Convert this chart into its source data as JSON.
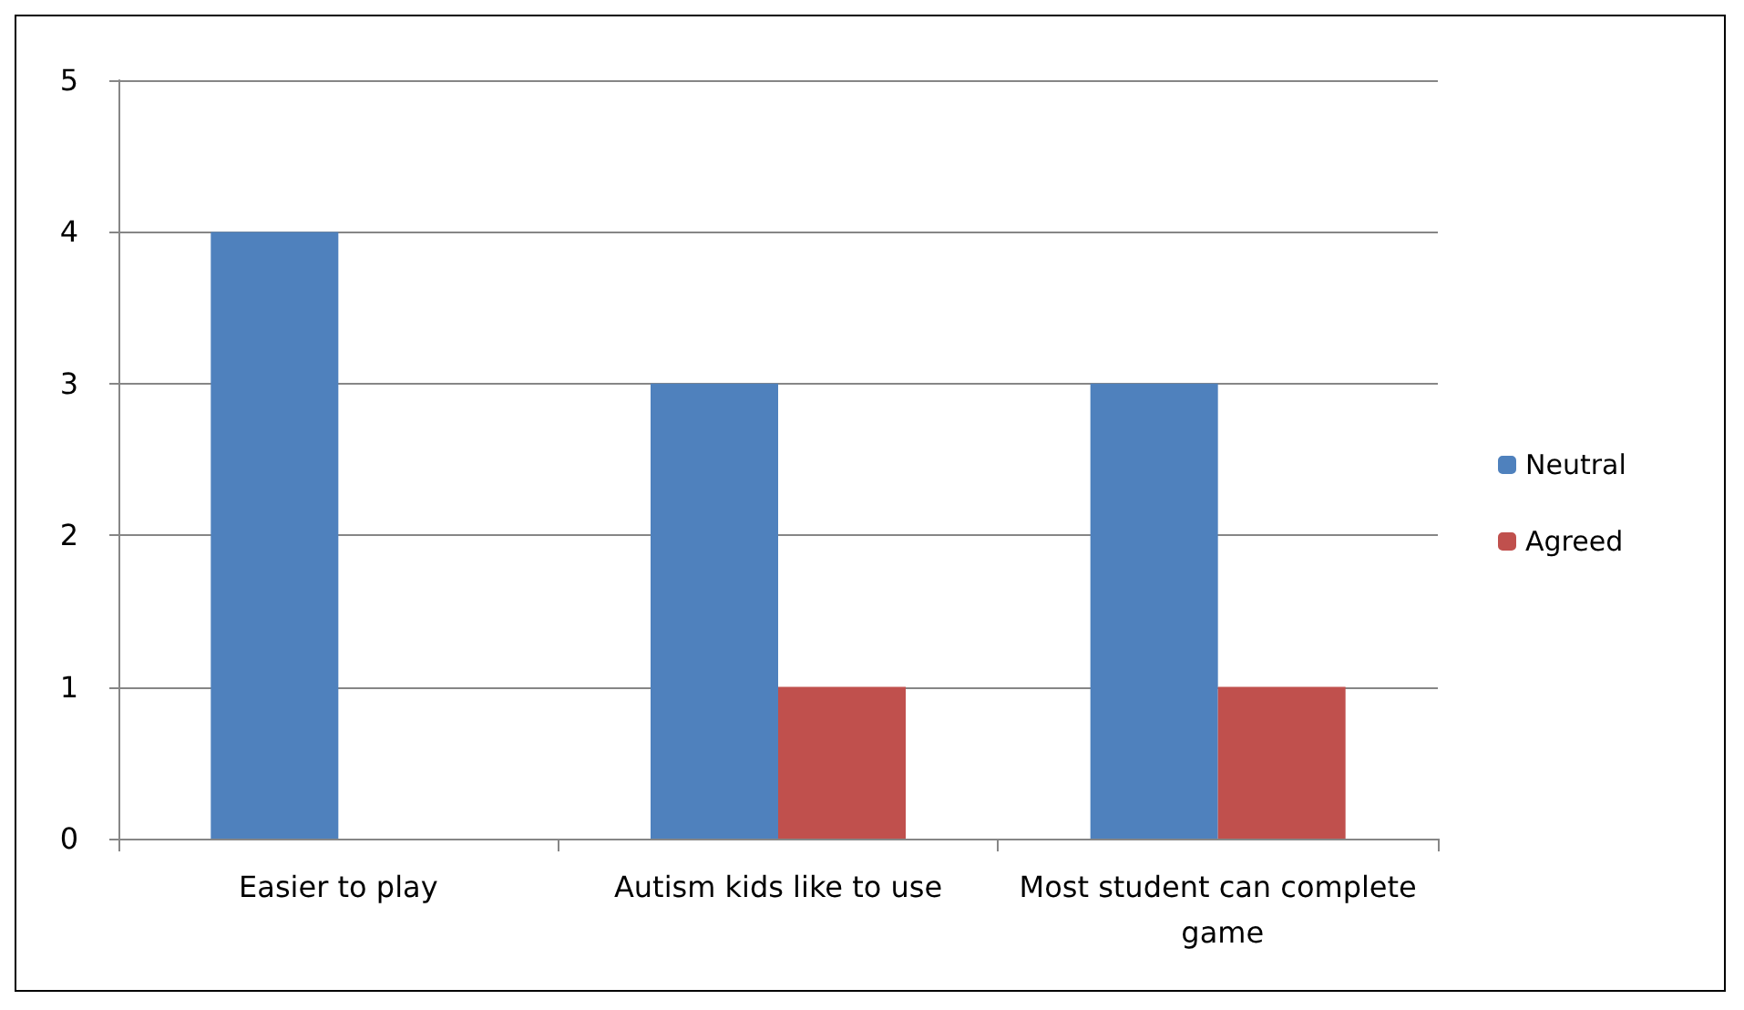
{
  "chart_data": {
    "type": "bar",
    "categories": [
      "Easier to play",
      "Autism kids like to use",
      "Most student can complete game"
    ],
    "series": [
      {
        "name": "Neutral",
        "color": "#4f81bd",
        "values": [
          4,
          3,
          3
        ]
      },
      {
        "name": "Agreed",
        "color": "#c0504d",
        "values": [
          0,
          1,
          1
        ]
      }
    ],
    "ylim": [
      0,
      5
    ],
    "yticks": [
      0,
      1,
      2,
      3,
      4,
      5
    ],
    "grid": "y",
    "legend": "right"
  }
}
